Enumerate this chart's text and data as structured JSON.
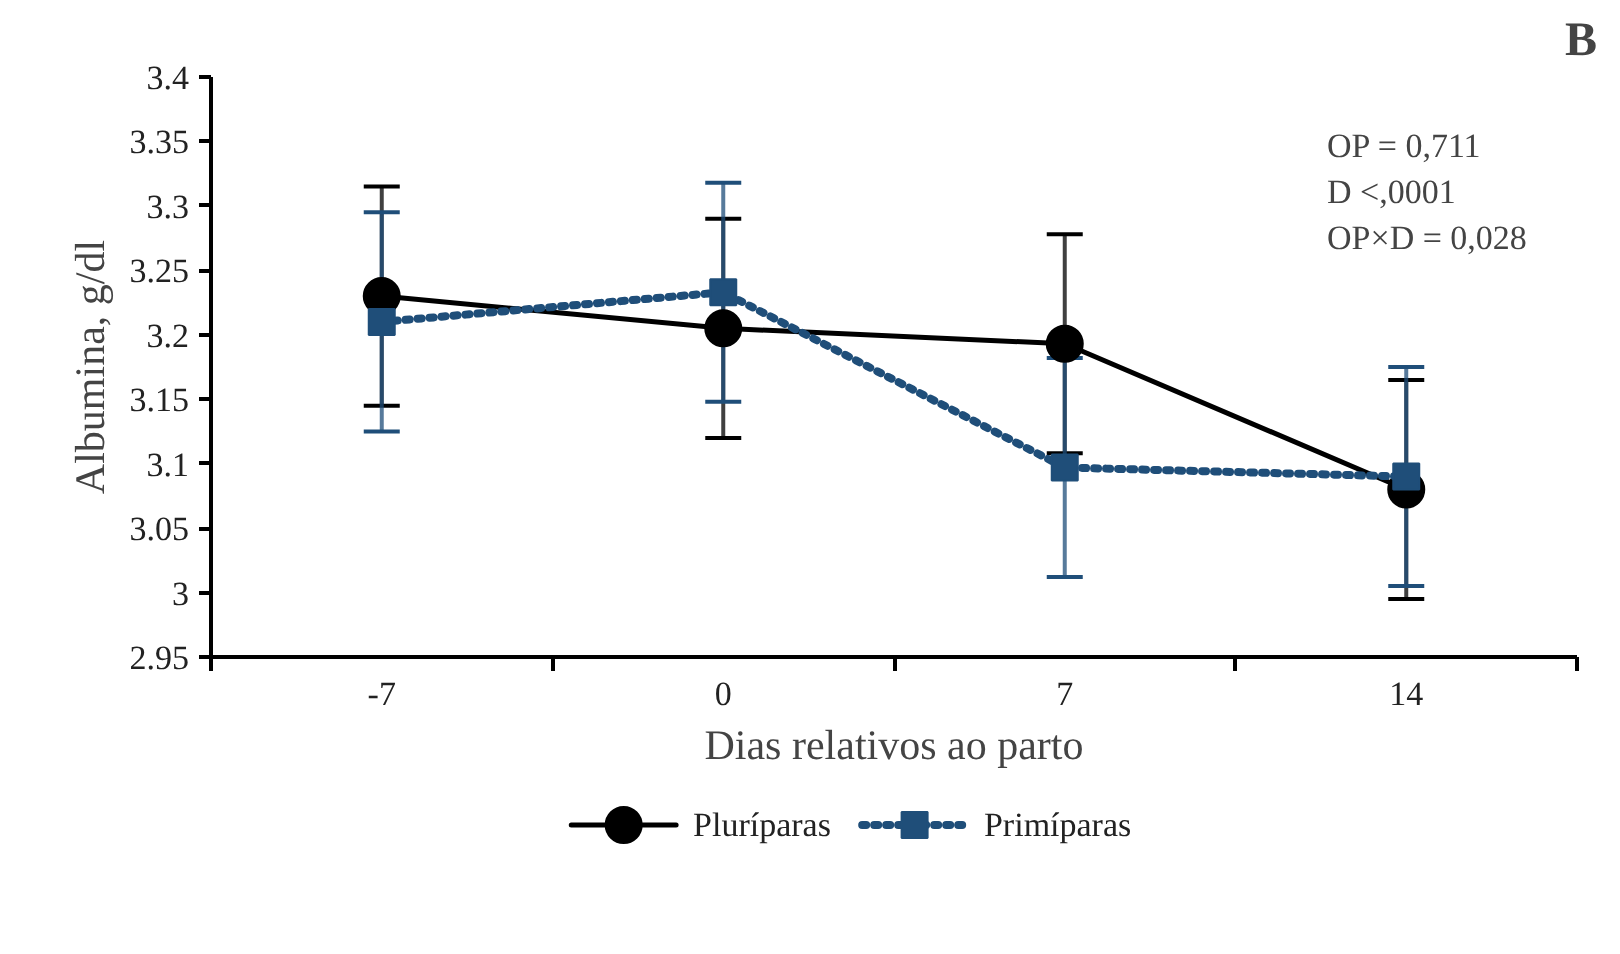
{
  "chart_data": {
    "type": "line",
    "xlabel": "Dias relativos ao parto",
    "ylabel": "Albumina, g/dl",
    "categories": [
      "-7",
      "0",
      "7",
      "14"
    ],
    "series": [
      {
        "name": "Pluríparas",
        "color": "#000000",
        "values": [
          3.23,
          3.205,
          3.193,
          3.08
        ],
        "errors": [
          0.085,
          0.085,
          0.085,
          0.085
        ],
        "marker": "circle",
        "line_style": "solid"
      },
      {
        "name": "Primíparas",
        "color": "#1f4e79",
        "values": [
          3.21,
          3.233,
          3.097,
          3.09
        ],
        "errors": [
          0.085,
          0.085,
          0.085,
          0.085
        ],
        "marker": "square",
        "line_style": "dotted"
      }
    ],
    "ylim": [
      2.95,
      3.4
    ],
    "yticks": [
      2.95,
      3,
      3.05,
      3.1,
      3.15,
      3.2,
      3.25,
      3.3,
      3.35,
      3.4
    ],
    "grid": false,
    "legend": "bottom",
    "annotations": [
      "B",
      "OP = 0,711",
      "D <,0001",
      "OP×D = 0,028"
    ]
  }
}
